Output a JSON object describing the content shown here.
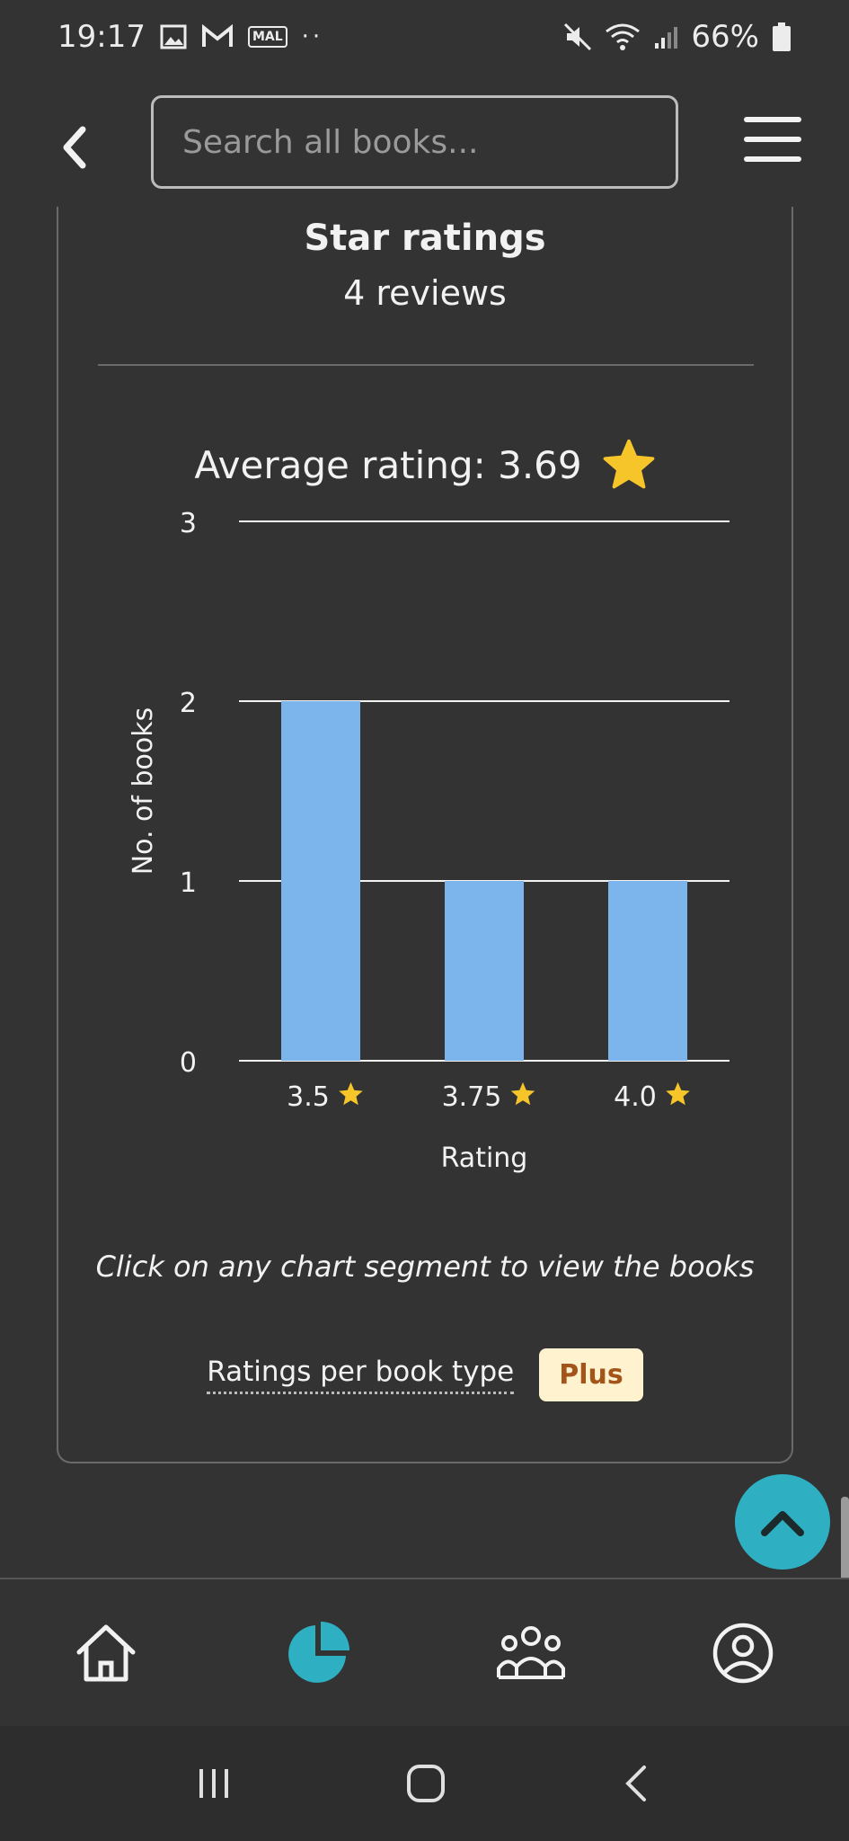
{
  "status": {
    "time": "19:17",
    "battery": "66%",
    "icons": [
      "image-icon",
      "gmail-icon",
      "mal-icon",
      "dots-icon",
      "mute-icon",
      "wifi-icon",
      "signal-icon",
      "battery-icon"
    ],
    "mal_text": "MAL"
  },
  "header": {
    "search_placeholder": "Search all books..."
  },
  "card": {
    "title": "Star ratings",
    "subtitle": "4 reviews",
    "average_label": "Average rating: 3.69",
    "hint": "Click on any chart segment to view the books",
    "plus_link": "Ratings per book type",
    "plus_badge": "Plus"
  },
  "chart_data": {
    "type": "bar",
    "categories": [
      "3.5",
      "3.75",
      "4.0"
    ],
    "values": [
      2,
      1,
      1
    ],
    "xlabel": "Rating",
    "ylabel": "No. of books",
    "ylim": [
      0,
      3
    ],
    "yticks": [
      "0",
      "1",
      "2",
      "3"
    ],
    "grid": true,
    "colors": {
      "bar": "#7cb4ec",
      "star": "#f6c52a",
      "grid": "#f2f2f2"
    }
  },
  "nav": {
    "items": [
      "home-icon",
      "pie-chart-icon",
      "community-icon",
      "profile-icon"
    ],
    "active_color": "#2fb0c2"
  },
  "colors": {
    "background": "#333333",
    "accent": "#2fb0c2",
    "plus_bg": "#fff3cf",
    "plus_text": "#a3541a"
  }
}
